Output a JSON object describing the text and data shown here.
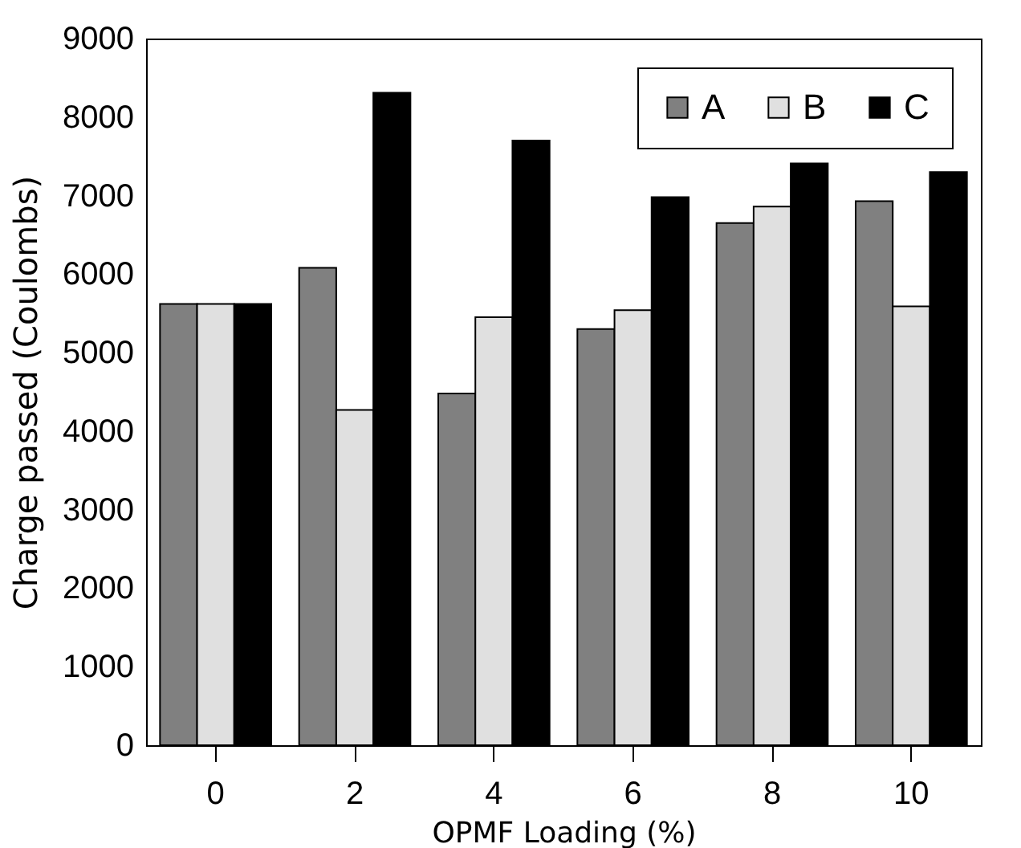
{
  "chart_data": {
    "type": "bar",
    "xlabel": "OPMF Loading (%)",
    "ylabel": "Charge passed (Coulombs)",
    "categories": [
      "0",
      "2",
      "4",
      "6",
      "8",
      "10"
    ],
    "series": [
      {
        "name": "A",
        "color": "#808080",
        "values": [
          5620,
          6080,
          4480,
          5300,
          6650,
          6930
        ]
      },
      {
        "name": "B",
        "color": "#e0e0e0",
        "values": [
          5620,
          4270,
          5450,
          5540,
          6860,
          5590
        ]
      },
      {
        "name": "C",
        "color": "#000000",
        "values": [
          5620,
          8310,
          7700,
          6980,
          7410,
          7300
        ]
      }
    ],
    "ylim": [
      0,
      9000
    ],
    "yticks": [
      0,
      1000,
      2000,
      3000,
      4000,
      5000,
      6000,
      7000,
      8000,
      9000
    ],
    "grid": false,
    "legend": "top right"
  }
}
